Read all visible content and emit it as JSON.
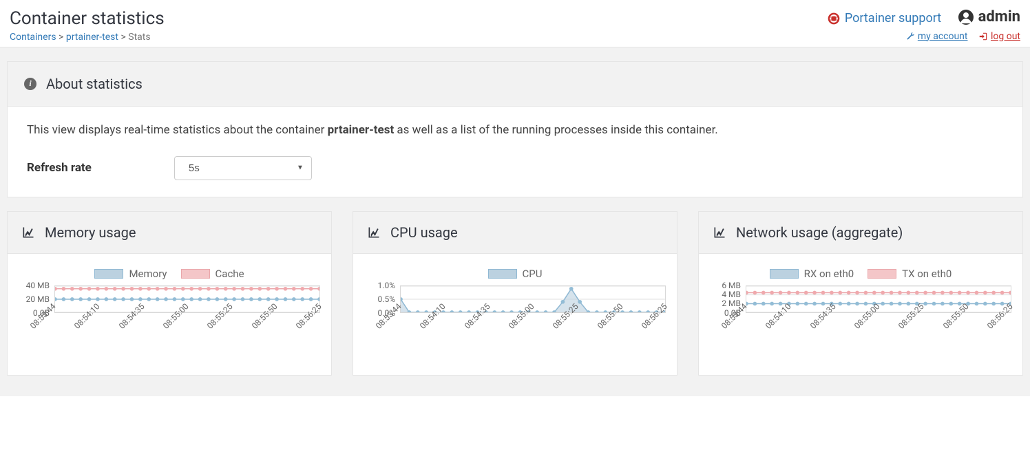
{
  "header": {
    "title": "Container statistics",
    "breadcrumb": {
      "containers": "Containers",
      "item": "prtainer-test",
      "stats": "Stats"
    },
    "support_label": "Portainer support",
    "user_name": "admin",
    "my_account": "my account",
    "logout": "log out"
  },
  "about": {
    "heading": "About statistics",
    "text_prefix": "This view displays real-time statistics about the container ",
    "container_name": "prtainer-test",
    "text_suffix": " as well as a list of the running processes inside this container.",
    "refresh_label": "Refresh rate",
    "refresh_value": "5s"
  },
  "x_ticks": [
    "08:53:44",
    "08:54:10",
    "08:54:35",
    "08:55:00",
    "08:55:25",
    "08:55:50",
    "08:56:25"
  ],
  "colors": {
    "blue_fill": "#bbd1e0",
    "blue_stroke": "#8fb8d3",
    "blue_marker": "#93bdd6",
    "red_fill": "#f4c6c8",
    "red_stroke": "#eaa7ab",
    "red_marker": "#f0a9ad",
    "grid": "#e0e0e0",
    "text": "#666666"
  },
  "charts": {
    "memory": {
      "title": "Memory usage",
      "legend": [
        {
          "label": "Memory",
          "color": "blue"
        },
        {
          "label": "Cache",
          "color": "red"
        }
      ],
      "y_ticks": [
        {
          "label": "40 MB",
          "frac": 0.0
        },
        {
          "label": "20 MB",
          "frac": 0.5
        },
        {
          "label": "0.0B",
          "frac": 1.0
        }
      ],
      "series": [
        {
          "color": "red",
          "values": [
            0.9,
            0.9,
            0.9,
            0.9,
            0.9,
            0.9,
            0.9,
            0.9,
            0.9,
            0.9,
            0.9,
            0.9,
            0.9,
            0.9,
            0.9,
            0.9,
            0.9,
            0.9,
            0.9,
            0.9,
            0.9,
            0.9,
            0.9,
            0.9,
            0.9,
            0.9,
            0.9,
            0.9,
            0.9,
            0.9,
            0.9,
            0.9
          ]
        },
        {
          "color": "blue",
          "values": [
            0.5,
            0.5,
            0.5,
            0.5,
            0.5,
            0.5,
            0.5,
            0.5,
            0.5,
            0.5,
            0.5,
            0.5,
            0.5,
            0.5,
            0.5,
            0.5,
            0.5,
            0.5,
            0.5,
            0.5,
            0.5,
            0.5,
            0.5,
            0.5,
            0.5,
            0.5,
            0.5,
            0.5,
            0.5,
            0.5,
            0.5,
            0.5
          ]
        }
      ]
    },
    "cpu": {
      "title": "CPU usage",
      "legend": [
        {
          "label": "CPU",
          "color": "blue"
        }
      ],
      "y_ticks": [
        {
          "label": "1.0%",
          "frac": 0.0
        },
        {
          "label": "0.5%",
          "frac": 0.5
        },
        {
          "label": "0.0%",
          "frac": 1.0
        }
      ],
      "series": [
        {
          "color": "blue",
          "values": [
            0.5,
            0.0,
            0.0,
            0.0,
            0.0,
            0.0,
            0.0,
            0.0,
            0.0,
            0.0,
            0.0,
            0.0,
            0.0,
            0.0,
            0.0,
            0.0,
            0.0,
            0.0,
            0.0,
            0.4,
            0.9,
            0.4,
            0.0,
            0.0,
            0.0,
            0.0,
            0.0,
            0.0,
            0.0,
            0.0,
            0.0,
            0.0
          ],
          "fill_area": true
        }
      ]
    },
    "network": {
      "title": "Network usage (aggregate)",
      "legend": [
        {
          "label": "RX on eth0",
          "color": "blue"
        },
        {
          "label": "TX on eth0",
          "color": "red"
        }
      ],
      "y_ticks": [
        {
          "label": "6 MB",
          "frac": 0.0
        },
        {
          "label": "4 MB",
          "frac": 0.333
        },
        {
          "label": "2 MB",
          "frac": 0.666
        },
        {
          "label": "0.0B",
          "frac": 1.0
        }
      ],
      "series": [
        {
          "color": "red",
          "values": [
            0.75,
            0.75,
            0.75,
            0.75,
            0.75,
            0.75,
            0.75,
            0.75,
            0.75,
            0.75,
            0.75,
            0.75,
            0.75,
            0.75,
            0.75,
            0.75,
            0.75,
            0.75,
            0.75,
            0.75,
            0.75,
            0.75,
            0.75,
            0.75,
            0.75,
            0.75,
            0.75,
            0.75,
            0.75,
            0.75,
            0.75,
            0.75
          ]
        },
        {
          "color": "blue",
          "values": [
            0.33,
            0.33,
            0.33,
            0.33,
            0.33,
            0.33,
            0.33,
            0.33,
            0.33,
            0.33,
            0.33,
            0.33,
            0.33,
            0.33,
            0.33,
            0.33,
            0.33,
            0.33,
            0.33,
            0.33,
            0.33,
            0.33,
            0.33,
            0.33,
            0.33,
            0.33,
            0.33,
            0.33,
            0.33,
            0.33,
            0.33,
            0.33
          ]
        }
      ]
    }
  }
}
